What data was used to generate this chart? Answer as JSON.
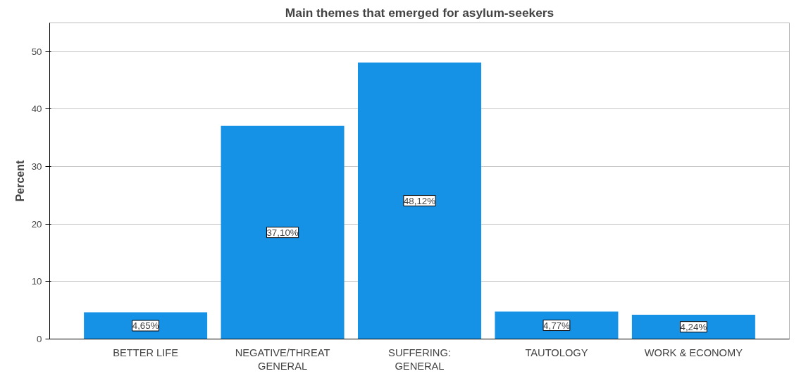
{
  "chart_data": {
    "type": "bar",
    "title": "Main themes that emerged for asylum-seekers",
    "ylabel": "Percent",
    "categories": [
      "BETTER LIFE",
      "NEGATIVE/THREAT\nGENERAL",
      "SUFFERING:\nGENERAL",
      "TAUTOLOGY",
      "WORK & ECONOMY"
    ],
    "values": [
      4.65,
      37.1,
      48.12,
      4.77,
      4.24
    ],
    "value_labels": [
      "4,65%",
      "37,10%",
      "48,12%",
      "4,77%",
      "4,24%"
    ],
    "color": "#1591e6",
    "ylim": [
      0,
      55
    ],
    "yticks": [
      0,
      10,
      20,
      30,
      40,
      50
    ],
    "grid": "y"
  }
}
